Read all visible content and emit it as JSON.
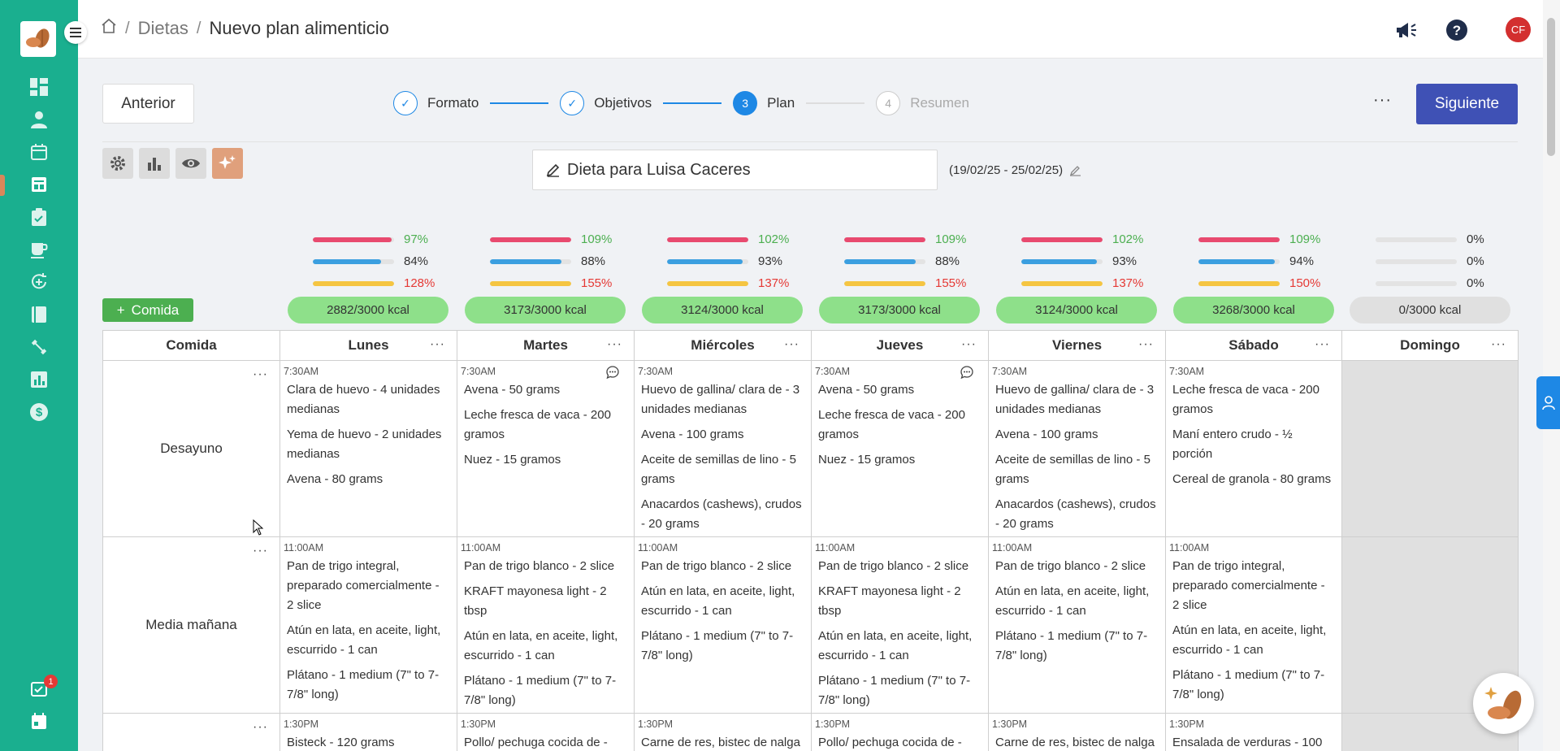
{
  "header": {
    "breadcrumb": {
      "section": "Dietas",
      "current": "Nuevo plan alimenticio"
    },
    "avatar_initials": "CF"
  },
  "sidebar": {
    "icons": [
      "dashboard-icon",
      "user-icon",
      "calendar-icon",
      "diet-icon",
      "clipboard-icon",
      "cup-icon",
      "refresh-plus-icon",
      "book-icon",
      "dumbbell-icon",
      "chart-icon",
      "dollar-icon",
      "tasks-icon",
      "calendar-bottom-icon"
    ],
    "active_item": "diet-icon",
    "tasks_badge": "1"
  },
  "toolbar": {
    "prev_label": "Anterior",
    "next_label": "Siguiente",
    "more": "···",
    "steps": [
      {
        "num": "✓",
        "label": "Formato",
        "state": "done"
      },
      {
        "num": "✓",
        "label": "Objetivos",
        "state": "done"
      },
      {
        "num": "3",
        "label": "Plan",
        "state": "current"
      },
      {
        "num": "4",
        "label": "Resumen",
        "state": "todo"
      }
    ]
  },
  "plan": {
    "name": "Dieta para Luisa Caceres",
    "date_range": "(19/02/25 - 25/02/25)",
    "add_meal_label": "Comida"
  },
  "colors": {
    "protein": "#e84a6f",
    "carbs": "#3b9fe0",
    "fat": "#f5c542",
    "ok": "#4caf50",
    "over": "#e53935",
    "accent": "#3f51b5",
    "sidebar": "#1aaf8f"
  },
  "macros": [
    {
      "values": [
        97,
        84,
        128
      ],
      "pct": [
        "97%",
        "84%",
        "128%"
      ],
      "kcal": "2882/3000 kcal"
    },
    {
      "values": [
        109,
        88,
        155
      ],
      "pct": [
        "109%",
        "88%",
        "155%"
      ],
      "kcal": "3173/3000 kcal"
    },
    {
      "values": [
        102,
        93,
        137
      ],
      "pct": [
        "102%",
        "93%",
        "137%"
      ],
      "kcal": "3124/3000 kcal"
    },
    {
      "values": [
        109,
        88,
        155
      ],
      "pct": [
        "109%",
        "88%",
        "155%"
      ],
      "kcal": "3173/3000 kcal"
    },
    {
      "values": [
        102,
        93,
        137
      ],
      "pct": [
        "102%",
        "93%",
        "137%"
      ],
      "kcal": "3124/3000 kcal"
    },
    {
      "values": [
        109,
        94,
        150
      ],
      "pct": [
        "109%",
        "94%",
        "150%"
      ],
      "kcal": "3268/3000 kcal"
    },
    {
      "values": [
        0,
        0,
        0
      ],
      "pct": [
        "0%",
        "0%",
        "0%"
      ],
      "kcal": "0/3000 kcal"
    }
  ],
  "table": {
    "meal_header": "Comida",
    "days": [
      "Lunes",
      "Martes",
      "Miércoles",
      "Jueves",
      "Viernes",
      "Sábado",
      "Domingo"
    ],
    "dots": "···",
    "meals": [
      {
        "name": "Desayuno",
        "cells": [
          {
            "time": "7:30AM",
            "items": [
              "Clara de huevo - 4 unidades medianas",
              "Yema de huevo - 2 unidades medianas",
              "Avena - 80 grams"
            ]
          },
          {
            "time": "7:30AM",
            "comment": true,
            "items": [
              "Avena - 50 grams",
              "Leche fresca de vaca - 200 gramos",
              "Nuez - 15 gramos"
            ]
          },
          {
            "time": "7:30AM",
            "items": [
              "Huevo de gallina/ clara de - 3 unidades medianas",
              "Avena - 100 grams",
              "Aceite de semillas de lino - 5 grams",
              "Anacardos (cashews), crudos - 20 grams"
            ]
          },
          {
            "time": "7:30AM",
            "comment": true,
            "items": [
              "Avena - 50 grams",
              "Leche fresca de vaca - 200 gramos",
              "Nuez - 15 gramos"
            ]
          },
          {
            "time": "7:30AM",
            "items": [
              "Huevo de gallina/ clara de - 3 unidades medianas",
              "Avena - 100 grams",
              "Aceite de semillas de lino - 5 grams",
              "Anacardos (cashews), crudos - 20 grams"
            ]
          },
          {
            "time": "7:30AM",
            "items": [
              "Leche fresca de vaca - 200 gramos",
              "Maní entero crudo - ½ porción",
              "Cereal de granola - 80 grams"
            ]
          }
        ]
      },
      {
        "name": "Media mañana",
        "cells": [
          {
            "time": "11:00AM",
            "items": [
              "Pan de trigo integral, preparado comercialmente - 2 slice",
              "Atún en lata, en aceite, light, escurrido - 1 can",
              "Plátano - 1 medium (7\" to 7-7/8\" long)"
            ]
          },
          {
            "time": "11:00AM",
            "items": [
              "Pan de trigo blanco - 2 slice",
              "KRAFT mayonesa light - 2 tbsp",
              "Atún en lata, en aceite, light, escurrido - 1 can",
              "Plátano - 1 medium (7\" to 7-7/8\" long)"
            ]
          },
          {
            "time": "11:00AM",
            "items": [
              "Pan de trigo blanco - 2 slice",
              "Atún en lata, en aceite, light, escurrido - 1 can",
              "Plátano - 1 medium (7\" to 7-7/8\" long)"
            ]
          },
          {
            "time": "11:00AM",
            "items": [
              "Pan de trigo blanco - 2 slice",
              "KRAFT mayonesa light - 2 tbsp",
              "Atún en lata, en aceite, light, escurrido - 1 can",
              "Plátano - 1 medium (7\" to 7-7/8\" long)"
            ]
          },
          {
            "time": "11:00AM",
            "items": [
              "Pan de trigo blanco - 2 slice",
              "Atún en lata, en aceite, light, escurrido - 1 can",
              "Plátano - 1 medium (7\" to 7-7/8\" long)"
            ]
          },
          {
            "time": "11:00AM",
            "items": [
              "Pan de trigo integral, preparado comercialmente - 2 slice",
              "Atún en lata, en aceite, light, escurrido - 1 can",
              "Plátano - 1 medium (7\" to 7-7/8\" long)"
            ]
          }
        ]
      },
      {
        "name": "",
        "cells": [
          {
            "time": "1:30PM",
            "items": [
              "Bisteck - 120 grams"
            ]
          },
          {
            "time": "1:30PM",
            "items": [
              "Pollo/ pechuga cocida de -"
            ]
          },
          {
            "time": "1:30PM",
            "items": [
              "Carne de res, bistec de nalga"
            ]
          },
          {
            "time": "1:30PM",
            "items": [
              "Pollo/ pechuga cocida de -"
            ]
          },
          {
            "time": "1:30PM",
            "items": [
              "Carne de res, bistec de nalga"
            ]
          },
          {
            "time": "1:30PM",
            "items": [
              "Ensalada de verduras - 100"
            ]
          }
        ]
      }
    ]
  }
}
